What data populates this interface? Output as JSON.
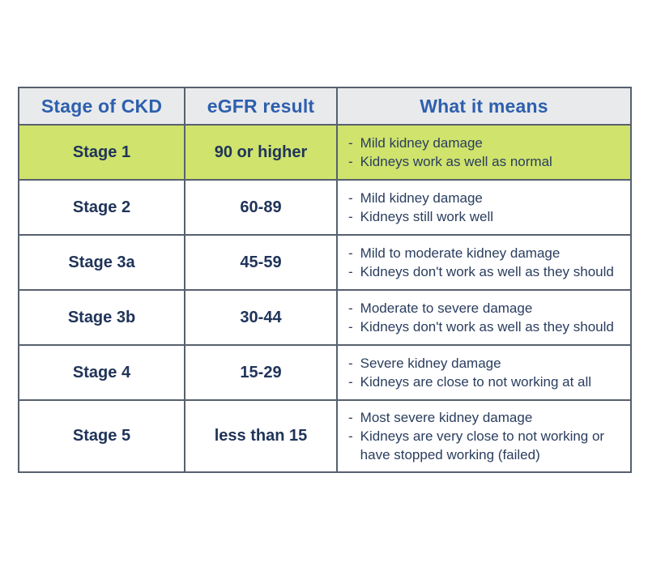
{
  "colors": {
    "highlight_row_bg": "#cfe36d",
    "header_bg": "#e9eaec",
    "header_text": "#2d5fae",
    "body_text": "#203459",
    "border": "#57606e"
  },
  "chart_data": {
    "type": "table",
    "columns": [
      "Stage of CKD",
      "eGFR result",
      "What it means"
    ],
    "rows": [
      {
        "stage": "Stage 1",
        "egfr": "90 or higher",
        "meaning": [
          "Mild kidney damage",
          "Kidneys work as well as normal"
        ],
        "highlighted": true
      },
      {
        "stage": "Stage 2",
        "egfr": "60-89",
        "meaning": [
          "Mild kidney damage",
          "Kidneys still work well"
        ],
        "highlighted": false
      },
      {
        "stage": "Stage 3a",
        "egfr": "45-59",
        "meaning": [
          "Mild to moderate kidney damage",
          "Kidneys don't work as well as they should"
        ],
        "highlighted": false
      },
      {
        "stage": "Stage 3b",
        "egfr": "30-44",
        "meaning": [
          "Moderate to severe damage",
          "Kidneys don't work as well as they should"
        ],
        "highlighted": false
      },
      {
        "stage": "Stage 4",
        "egfr": "15-29",
        "meaning": [
          "Severe kidney damage",
          "Kidneys are close to not working at all"
        ],
        "highlighted": false
      },
      {
        "stage": "Stage 5",
        "egfr": "less than 15",
        "meaning": [
          "Most severe kidney damage",
          "Kidneys are very close to not working or have stopped working (failed)"
        ],
        "highlighted": false
      }
    ],
    "bullet_glyph": "-"
  }
}
